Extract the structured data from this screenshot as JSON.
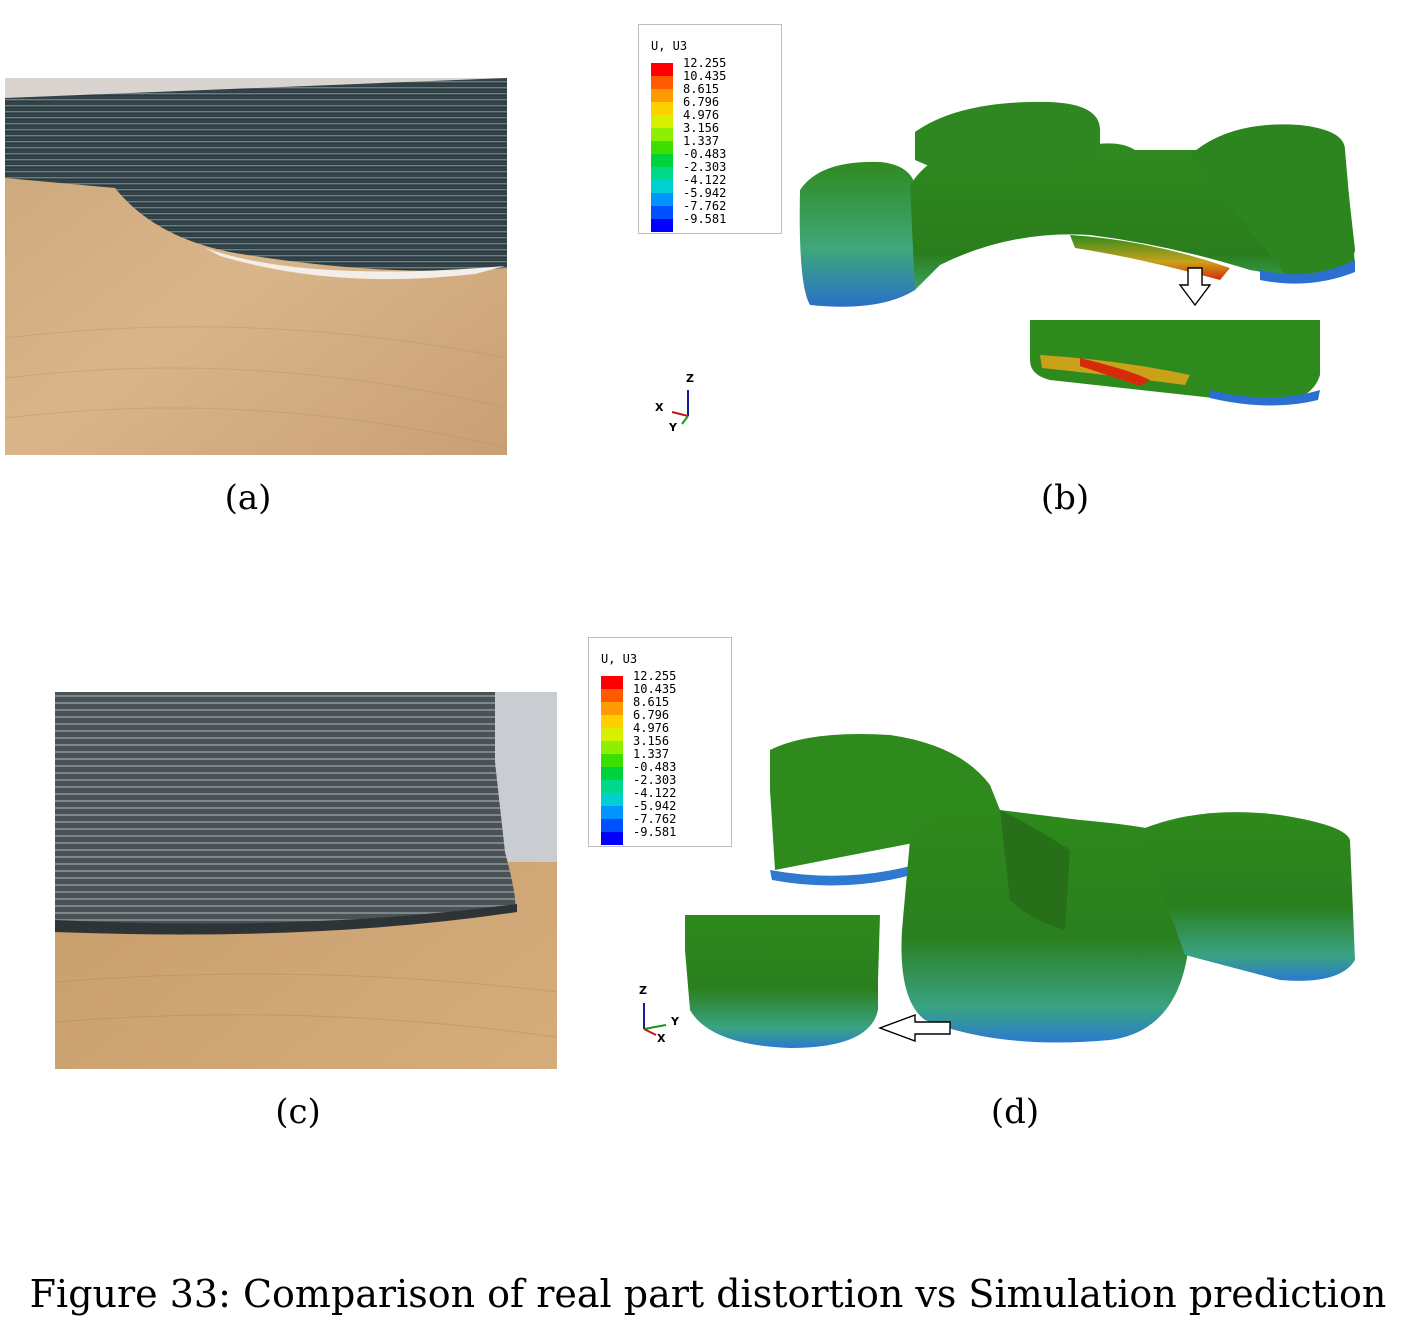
{
  "panels": {
    "a": {
      "label": "(a)"
    },
    "b": {
      "label": "(b)"
    },
    "c": {
      "label": "(c)"
    },
    "d": {
      "label": "(d)"
    }
  },
  "legend": {
    "title": "U, U3",
    "values": [
      "12.255",
      "10.435",
      "8.615",
      "6.796",
      "4.976",
      "3.156",
      "1.337",
      "-0.483",
      "-2.303",
      "-4.122",
      "-5.942",
      "-7.762",
      "-9.581"
    ],
    "colors": [
      "#ff0000",
      "#ff5a00",
      "#ff9b00",
      "#ffd000",
      "#d8f000",
      "#8cf000",
      "#3ce000",
      "#00d23c",
      "#00d88a",
      "#00d0d0",
      "#0094ff",
      "#0050ff",
      "#0000ff"
    ]
  },
  "axes_b": {
    "z": "Z",
    "x": "X",
    "y": "Y"
  },
  "axes_d": {
    "z": "Z",
    "y": "Y",
    "x": "X"
  },
  "caption": "Figure 33: Comparison of real part distortion vs Simulation prediction"
}
